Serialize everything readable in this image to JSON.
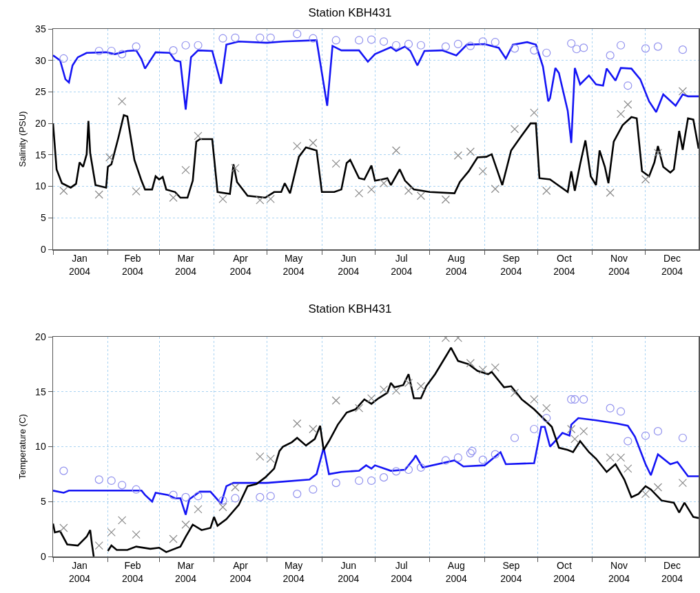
{
  "chart_data": [
    {
      "type": "line",
      "title": "Station KBH431",
      "ylabel": "Salinity (PSU)",
      "xlim": [
        "2004-01-01",
        "2004-12-31"
      ],
      "xticks": [
        {
          "value": "2004-01-01",
          "label": null
        },
        {
          "value": "2004-02-01",
          "label": null
        },
        {
          "value": "2004-03-01",
          "label": null
        },
        {
          "value": "2004-04-01",
          "label": null
        },
        {
          "value": "2004-05-01",
          "label": null
        },
        {
          "value": "2004-06-01",
          "label": null
        },
        {
          "value": "2004-07-01",
          "label": null
        },
        {
          "value": "2004-08-01",
          "label": null
        },
        {
          "value": "2004-09-01",
          "label": null
        },
        {
          "value": "2004-10-01",
          "label": null
        },
        {
          "value": "2004-11-01",
          "label": null
        },
        {
          "value": "2004-12-01",
          "label": null
        },
        {
          "value": "2004-01-16",
          "label": "Jan\n2004"
        },
        {
          "value": "2004-02-15",
          "label": "Feb\n2004"
        },
        {
          "value": "2004-03-16",
          "label": "Mar\n2004"
        },
        {
          "value": "2004-04-16",
          "label": "Apr\n2004"
        },
        {
          "value": "2004-05-16",
          "label": "May\n2004"
        },
        {
          "value": "2004-06-16",
          "label": "Jun\n2004"
        },
        {
          "value": "2004-07-16",
          "label": "Jul\n2004"
        },
        {
          "value": "2004-08-16",
          "label": "Aug\n2004"
        },
        {
          "value": "2004-09-16",
          "label": "Sep\n2004"
        },
        {
          "value": "2004-10-16",
          "label": "Oct\n2004"
        },
        {
          "value": "2004-11-16",
          "label": "Nov\n2004"
        },
        {
          "value": "2004-12-16",
          "label": "Dec\n2004"
        }
      ],
      "ylim": [
        0,
        35
      ],
      "yticks": [
        0,
        5,
        10,
        15,
        20,
        25,
        30,
        35
      ],
      "grid": true,
      "series": [
        {
          "type": "line",
          "color": "#1414f5",
          "x": [
            "2004-01-01",
            "2004-01-05",
            "2004-01-08",
            "2004-01-10",
            "2004-01-12",
            "2004-01-15",
            "2004-01-20",
            "2004-01-31",
            "2004-02-05",
            "2004-02-12",
            "2004-02-17",
            "2004-02-20",
            "2004-02-22",
            "2004-02-28",
            "2004-03-07",
            "2004-03-10",
            "2004-03-13",
            "2004-03-16",
            "2004-03-19",
            "2004-03-23",
            "2004-03-31",
            "2004-04-05",
            "2004-04-08",
            "2004-04-15",
            "2004-05-01",
            "2004-05-10",
            "2004-05-29",
            "2004-06-04",
            "2004-06-07",
            "2004-06-12",
            "2004-06-22",
            "2004-06-27",
            "2004-07-01",
            "2004-07-10",
            "2004-07-13",
            "2004-07-18",
            "2004-07-21",
            "2004-07-25",
            "2004-07-29",
            "2004-08-08",
            "2004-08-16",
            "2004-08-22",
            "2004-09-01",
            "2004-09-09",
            "2004-09-13",
            "2004-09-17",
            "2004-09-25",
            "2004-09-30",
            "2004-10-04",
            "2004-10-07",
            "2004-10-08",
            "2004-10-11",
            "2004-10-13",
            "2004-10-18",
            "2004-10-20",
            "2004-10-22",
            "2004-10-25",
            "2004-10-30",
            "2004-11-03",
            "2004-11-07",
            "2004-11-09",
            "2004-11-14",
            "2004-11-17",
            "2004-11-23",
            "2004-11-28",
            "2004-12-03",
            "2004-12-07",
            "2004-12-11",
            "2004-12-18",
            "2004-12-22",
            "2004-12-25",
            "2004-12-31"
          ],
          "values": [
            30.8,
            30,
            27,
            26.5,
            29.2,
            30.5,
            31.2,
            31.3,
            31,
            31.5,
            31.6,
            30.2,
            28.7,
            31.3,
            31.2,
            30,
            29.8,
            22.2,
            30.5,
            31.6,
            31.5,
            26.3,
            32.5,
            33,
            32.8,
            33,
            33.2,
            22.8,
            32.3,
            31.6,
            31.6,
            29.8,
            31,
            32.1,
            31.5,
            32.2,
            31.5,
            29.2,
            31.5,
            31.6,
            30.8,
            32.5,
            32.6,
            32,
            30.3,
            32.5,
            32.9,
            32.5,
            29,
            23.5,
            24,
            28.8,
            28,
            22,
            16.9,
            28.8,
            26.2,
            27.6,
            26.2,
            26,
            28.7,
            26.8,
            28.8,
            28.7,
            27,
            23.5,
            21.8,
            24.6,
            22.8,
            24.6,
            24.3,
            24.3
          ]
        },
        {
          "type": "line",
          "color": "#000000",
          "x": [
            "2004-01-01",
            "2004-01-03",
            "2004-01-06",
            "2004-01-11",
            "2004-01-14",
            "2004-01-16",
            "2004-01-18",
            "2004-01-20",
            "2004-01-21",
            "2004-01-22",
            "2004-01-25",
            "2004-01-31",
            "2004-02-01",
            "2004-02-03",
            "2004-02-07",
            "2004-02-10",
            "2004-02-12",
            "2004-02-16",
            "2004-02-20",
            "2004-02-22",
            "2004-02-26",
            "2004-02-28",
            "2004-03-01",
            "2004-03-03",
            "2004-03-05",
            "2004-03-10",
            "2004-03-13",
            "2004-03-17",
            "2004-03-20",
            "2004-03-22",
            "2004-03-24",
            "2004-03-31",
            "2004-04-03",
            "2004-04-10",
            "2004-04-12",
            "2004-04-14",
            "2004-04-20",
            "2004-04-30",
            "2004-05-05",
            "2004-05-09",
            "2004-05-11",
            "2004-05-14",
            "2004-05-17",
            "2004-05-19",
            "2004-05-23",
            "2004-05-29",
            "2004-06-01",
            "2004-06-08",
            "2004-06-12",
            "2004-06-15",
            "2004-06-17",
            "2004-06-22",
            "2004-06-25",
            "2004-06-29",
            "2004-07-01",
            "2004-07-05",
            "2004-07-08",
            "2004-07-10",
            "2004-07-15",
            "2004-07-18",
            "2004-07-23",
            "2004-08-01",
            "2004-08-15",
            "2004-08-18",
            "2004-08-23",
            "2004-08-28",
            "2004-09-02",
            "2004-09-05",
            "2004-09-11",
            "2004-09-16",
            "2004-09-21",
            "2004-09-27",
            "2004-09-30",
            "2004-10-02",
            "2004-10-08",
            "2004-10-11",
            "2004-10-18",
            "2004-10-20",
            "2004-10-22",
            "2004-10-25",
            "2004-10-28",
            "2004-10-31",
            "2004-11-03",
            "2004-11-05",
            "2004-11-08",
            "2004-11-10",
            "2004-11-13",
            "2004-11-18",
            "2004-11-23",
            "2004-11-26",
            "2004-11-29",
            "2004-12-03",
            "2004-12-06",
            "2004-12-08",
            "2004-12-11",
            "2004-12-15",
            "2004-12-17",
            "2004-12-20",
            "2004-12-22",
            "2004-12-25",
            "2004-12-28",
            "2004-12-31"
          ],
          "values": [
            20,
            12.7,
            10.5,
            9.8,
            10.4,
            13.8,
            13.1,
            15.1,
            20.4,
            15.3,
            10.2,
            9.8,
            13.1,
            13.5,
            17.8,
            21.3,
            21.1,
            14.2,
            10.9,
            9.5,
            9.5,
            11.6,
            11.1,
            11.5,
            9.5,
            9.1,
            8.2,
            8.2,
            10.9,
            17.1,
            17.5,
            17.5,
            9.1,
            8.8,
            13.5,
            10.7,
            8.5,
            8.2,
            9.1,
            9.1,
            10.5,
            8.9,
            12.4,
            14.7,
            16.2,
            15.7,
            9.1,
            9.1,
            9.5,
            13.7,
            14.2,
            11.3,
            11.1,
            13.3,
            10.9,
            11.1,
            11.3,
            10.2,
            12.7,
            10.9,
            9.5,
            9.1,
            8.9,
            10.7,
            12.4,
            14.6,
            14.7,
            15.1,
            10.2,
            15.7,
            17.7,
            20,
            20,
            11.3,
            11.1,
            10.5,
            9.1,
            12.4,
            9.3,
            13.5,
            17.3,
            11.6,
            10.2,
            15.7,
            13.1,
            10.5,
            17.1,
            19.7,
            21,
            20.8,
            12.4,
            11.6,
            13.8,
            16.4,
            13.1,
            12.2,
            12.7,
            18.8,
            15.8,
            20.8,
            20.6,
            16
          ]
        },
        {
          "type": "scatter",
          "marker": "circle",
          "color": "#9090ee",
          "x": [
            "2004-01-07",
            "2004-01-27",
            "2004-02-03",
            "2004-02-09",
            "2004-02-17",
            "2004-03-09",
            "2004-03-16",
            "2004-03-23",
            "2004-04-06",
            "2004-04-13",
            "2004-04-27",
            "2004-05-03",
            "2004-05-18",
            "2004-05-27",
            "2004-06-09",
            "2004-06-22",
            "2004-06-29",
            "2004-07-06",
            "2004-07-13",
            "2004-07-20",
            "2004-07-27",
            "2004-08-10",
            "2004-08-17",
            "2004-08-24",
            "2004-08-31",
            "2004-09-07",
            "2004-09-18",
            "2004-09-29",
            "2004-10-06",
            "2004-10-20",
            "2004-10-23",
            "2004-10-27",
            "2004-11-11",
            "2004-11-17",
            "2004-11-21",
            "2004-12-01",
            "2004-12-08",
            "2004-12-22"
          ],
          "values": [
            30.3,
            31.5,
            31.5,
            31,
            32.2,
            31.6,
            32.4,
            32.4,
            33.5,
            33.6,
            33.6,
            33.6,
            34.2,
            33.5,
            33.2,
            33.2,
            33.3,
            33,
            32.4,
            32.6,
            32.4,
            32.2,
            32.6,
            32.3,
            33,
            32.9,
            31.9,
            31.6,
            31.2,
            32.7,
            31.8,
            32,
            30.8,
            32.4,
            26,
            31.9,
            32.2,
            31.7
          ]
        },
        {
          "type": "scatter",
          "marker": "cross",
          "color": "#8a8a8a",
          "x": [
            "2004-01-07",
            "2004-01-27",
            "2004-02-02",
            "2004-02-09",
            "2004-02-17",
            "2004-03-09",
            "2004-03-16",
            "2004-03-23",
            "2004-04-06",
            "2004-04-13",
            "2004-04-27",
            "2004-05-03",
            "2004-05-18",
            "2004-05-27",
            "2004-06-09",
            "2004-06-22",
            "2004-06-29",
            "2004-07-06",
            "2004-07-13",
            "2004-07-20",
            "2004-07-27",
            "2004-08-10",
            "2004-08-17",
            "2004-08-24",
            "2004-08-31",
            "2004-09-07",
            "2004-09-18",
            "2004-09-29",
            "2004-10-06",
            "2004-11-11",
            "2004-11-17",
            "2004-11-21",
            "2004-12-01",
            "2004-12-08",
            "2004-12-22"
          ],
          "values": [
            9.3,
            8.7,
            14.6,
            23.5,
            9.2,
            8.2,
            12.6,
            18,
            8,
            12.9,
            7.8,
            8,
            16.4,
            16.9,
            13.6,
            8.9,
            9.5,
            10.5,
            15.7,
            9.3,
            8.5,
            7.9,
            14.9,
            15.5,
            12.4,
            9.6,
            19.1,
            21.7,
            9.3,
            9,
            21.5,
            23,
            11.1,
            15.3,
            25.1
          ]
        }
      ]
    },
    {
      "type": "line",
      "title": "Station KBH431",
      "ylabel": "Temperature (C)",
      "xlim": [
        "2004-01-01",
        "2004-12-31"
      ],
      "xticks": [
        {
          "value": "2004-01-01",
          "label": null
        },
        {
          "value": "2004-02-01",
          "label": null
        },
        {
          "value": "2004-03-01",
          "label": null
        },
        {
          "value": "2004-04-01",
          "label": null
        },
        {
          "value": "2004-05-01",
          "label": null
        },
        {
          "value": "2004-06-01",
          "label": null
        },
        {
          "value": "2004-07-01",
          "label": null
        },
        {
          "value": "2004-08-01",
          "label": null
        },
        {
          "value": "2004-09-01",
          "label": null
        },
        {
          "value": "2004-10-01",
          "label": null
        },
        {
          "value": "2004-11-01",
          "label": null
        },
        {
          "value": "2004-12-01",
          "label": null
        },
        {
          "value": "2004-01-16",
          "label": "Jan\n2004"
        },
        {
          "value": "2004-02-15",
          "label": "Feb\n2004"
        },
        {
          "value": "2004-03-16",
          "label": "Mar\n2004"
        },
        {
          "value": "2004-04-16",
          "label": "Apr\n2004"
        },
        {
          "value": "2004-05-16",
          "label": "May\n2004"
        },
        {
          "value": "2004-06-16",
          "label": "Jun\n2004"
        },
        {
          "value": "2004-07-16",
          "label": "Jul\n2004"
        },
        {
          "value": "2004-08-16",
          "label": "Aug\n2004"
        },
        {
          "value": "2004-09-16",
          "label": "Sep\n2004"
        },
        {
          "value": "2004-10-16",
          "label": "Oct\n2004"
        },
        {
          "value": "2004-11-16",
          "label": "Nov\n2004"
        },
        {
          "value": "2004-12-16",
          "label": "Dec\n2004"
        }
      ],
      "ylim": [
        0,
        20
      ],
      "yticks": [
        0,
        5,
        10,
        15,
        20
      ],
      "grid": true,
      "series": [
        {
          "type": "line",
          "color": "#1414f5",
          "x": [
            "2004-01-01",
            "2004-01-07",
            "2004-01-10",
            "2004-02-20",
            "2004-02-22",
            "2004-02-26",
            "2004-02-28",
            "2004-03-06",
            "2004-03-10",
            "2004-03-13",
            "2004-03-16",
            "2004-03-18",
            "2004-03-24",
            "2004-03-30",
            "2004-04-05",
            "2004-04-08",
            "2004-04-12",
            "2004-05-01",
            "2004-05-25",
            "2004-05-29",
            "2004-06-02",
            "2004-06-05",
            "2004-06-12",
            "2004-06-22",
            "2004-06-26",
            "2004-06-29",
            "2004-07-01",
            "2004-07-10",
            "2004-07-18",
            "2004-07-23",
            "2004-07-24",
            "2004-07-28",
            "2004-08-15",
            "2004-08-20",
            "2004-09-01",
            "2004-09-10",
            "2004-09-13",
            "2004-09-29",
            "2004-10-03",
            "2004-10-05",
            "2004-10-08",
            "2004-10-12",
            "2004-10-15",
            "2004-10-19",
            "2004-10-20",
            "2004-10-24",
            "2004-11-03",
            "2004-11-15",
            "2004-11-21",
            "2004-11-25",
            "2004-12-01",
            "2004-12-04",
            "2004-12-08",
            "2004-12-15",
            "2004-12-19",
            "2004-12-25",
            "2004-12-31"
          ],
          "values": [
            6,
            5.8,
            6,
            6,
            5.6,
            5,
            5.8,
            5.6,
            5.3,
            5.3,
            3.8,
            5.2,
            5.9,
            5.9,
            4.8,
            6.4,
            6.7,
            6.7,
            7,
            7.5,
            9.9,
            7.5,
            7.7,
            7.8,
            8.3,
            8,
            8.3,
            7.8,
            7.9,
            8.9,
            9.2,
            8.1,
            8.75,
            8.2,
            8.3,
            9.5,
            8.4,
            8.5,
            11.8,
            11.8,
            10,
            10.7,
            11.25,
            11,
            12,
            12.6,
            12.4,
            12.1,
            11.9,
            10.9,
            8.4,
            7.4,
            9.3,
            8.4,
            8.6,
            7.3,
            7.3
          ]
        },
        {
          "type": "line",
          "color": "#000000",
          "x": [
            "2004-01-01",
            "2004-01-02",
            "2004-01-05",
            "2004-01-09",
            "2004-01-15",
            "2004-01-20",
            "2004-01-22",
            "2004-01-23",
            "2004-01-24",
            "2004-01-25",
            "2004-02-01",
            "2004-02-03",
            "2004-02-06",
            "2004-02-12",
            "2004-02-17",
            "2004-02-25",
            "2004-03-01",
            "2004-03-05",
            "2004-03-13",
            "2004-03-16",
            "2004-03-20",
            "2004-03-25",
            "2004-03-30",
            "2004-04-01",
            "2004-04-03",
            "2004-04-08",
            "2004-04-15",
            "2004-04-20",
            "2004-04-25",
            "2004-04-30",
            "2004-05-05",
            "2004-05-08",
            "2004-05-10",
            "2004-05-15",
            "2004-05-18",
            "2004-05-23",
            "2004-05-28",
            "2004-05-31",
            "2004-06-02",
            "2004-06-05",
            "2004-06-10",
            "2004-06-15",
            "2004-06-20",
            "2004-06-25",
            "2004-06-29",
            "2004-07-03",
            "2004-07-08",
            "2004-07-10",
            "2004-07-12",
            "2004-07-17",
            "2004-07-20",
            "2004-07-23",
            "2004-07-27",
            "2004-07-30",
            "2004-08-04",
            "2004-08-10",
            "2004-08-13",
            "2004-08-17",
            "2004-08-23",
            "2004-08-28",
            "2004-09-03",
            "2004-09-05",
            "2004-09-12",
            "2004-09-16",
            "2004-09-22",
            "2004-09-29",
            "2004-10-04",
            "2004-10-09",
            "2004-10-13",
            "2004-10-18",
            "2004-10-21",
            "2004-10-25",
            "2004-10-30",
            "2004-11-03",
            "2004-11-09",
            "2004-11-14",
            "2004-11-19",
            "2004-11-23",
            "2004-11-27",
            "2004-12-01",
            "2004-12-04",
            "2004-12-10",
            "2004-12-17",
            "2004-12-20",
            "2004-12-23",
            "2004-12-28",
            "2004-12-31"
          ],
          "values": [
            3,
            2.2,
            2.3,
            1.1,
            1,
            1.8,
            2.4,
            1.1,
            0,
            null,
            0.5,
            1,
            0.6,
            0.6,
            0.9,
            0.7,
            0.8,
            0.4,
            0.9,
            1.8,
            2.9,
            2.4,
            2.6,
            3.6,
            2.8,
            3.4,
            4.7,
            6.4,
            6.6,
            7.2,
            8,
            9.6,
            10,
            10.4,
            10.8,
            10.1,
            10.7,
            11.9,
            9.7,
            10.5,
            12,
            13.1,
            13.4,
            14.3,
            13.9,
            14.4,
            14.9,
            15.8,
            15.4,
            15.6,
            16.6,
            14.4,
            14.4,
            15.5,
            16.6,
            18.2,
            19,
            17.8,
            17.5,
            16.9,
            16.6,
            16.8,
            15.4,
            15.5,
            14.3,
            13.4,
            12.6,
            11.8,
            9.9,
            9.7,
            9.5,
            10.5,
            9.5,
            8.9,
            7.7,
            8.4,
            7,
            5.4,
            5.7,
            6.4,
            6.1,
            5.1,
            4.9,
            4,
            4.9,
            3.6,
            3.5
          ]
        },
        {
          "type": "scatter",
          "marker": "circle",
          "color": "#9090ee",
          "x": [
            "2004-01-07",
            "2004-01-27",
            "2004-02-03",
            "2004-02-09",
            "2004-02-17",
            "2004-03-09",
            "2004-03-16",
            "2004-03-23",
            "2004-04-06",
            "2004-04-13",
            "2004-04-27",
            "2004-05-03",
            "2004-05-18",
            "2004-05-27",
            "2004-06-09",
            "2004-06-22",
            "2004-06-29",
            "2004-07-06",
            "2004-07-13",
            "2004-07-20",
            "2004-07-27",
            "2004-08-10",
            "2004-08-17",
            "2004-08-24",
            "2004-08-25",
            "2004-08-31",
            "2004-09-07",
            "2004-09-18",
            "2004-09-29",
            "2004-10-06",
            "2004-10-20",
            "2004-10-22",
            "2004-10-27",
            "2004-11-11",
            "2004-11-17",
            "2004-11-21",
            "2004-12-01",
            "2004-12-08",
            "2004-12-22"
          ],
          "values": [
            7.8,
            7,
            6.9,
            6.5,
            6.1,
            5.6,
            5.4,
            5.5,
            5.1,
            5.3,
            5.4,
            5.5,
            5.7,
            6.1,
            6.7,
            6.9,
            6.9,
            7.2,
            7.75,
            7.9,
            8.1,
            8.75,
            9,
            9.4,
            9.6,
            8.8,
            9.3,
            10.8,
            11.6,
            12.6,
            14.3,
            14.3,
            14.3,
            13.5,
            13.2,
            10.5,
            11,
            11.4,
            10.8
          ]
        },
        {
          "type": "scatter",
          "marker": "cross",
          "color": "#8a8a8a",
          "x": [
            "2004-01-07",
            "2004-01-27",
            "2004-02-03",
            "2004-02-09",
            "2004-02-17",
            "2004-03-09",
            "2004-03-16",
            "2004-03-23",
            "2004-04-06",
            "2004-04-13",
            "2004-04-27",
            "2004-05-03",
            "2004-05-18",
            "2004-05-27",
            "2004-06-09",
            "2004-06-22",
            "2004-06-29",
            "2004-07-06",
            "2004-07-13",
            "2004-07-20",
            "2004-07-27",
            "2004-08-10",
            "2004-08-17",
            "2004-08-24",
            "2004-08-31",
            "2004-09-07",
            "2004-09-18",
            "2004-09-29",
            "2004-10-06",
            "2004-10-20",
            "2004-10-22",
            "2004-10-27",
            "2004-11-11",
            "2004-11-17",
            "2004-11-21",
            "2004-12-01",
            "2004-12-08",
            "2004-12-22"
          ],
          "values": [
            2.6,
            1,
            2.2,
            3.3,
            2,
            1.6,
            2.9,
            4.3,
            4.5,
            6.3,
            9.1,
            8.9,
            12.1,
            11.6,
            14.2,
            13.5,
            14.4,
            15.2,
            15.1,
            15.8,
            15.5,
            19.9,
            19.9,
            17.6,
            17,
            17.2,
            14.9,
            14.3,
            13.5,
            11.6,
            10.7,
            11.4,
            9,
            9,
            8,
            5.7,
            6.3,
            6.7
          ]
        }
      ]
    }
  ]
}
